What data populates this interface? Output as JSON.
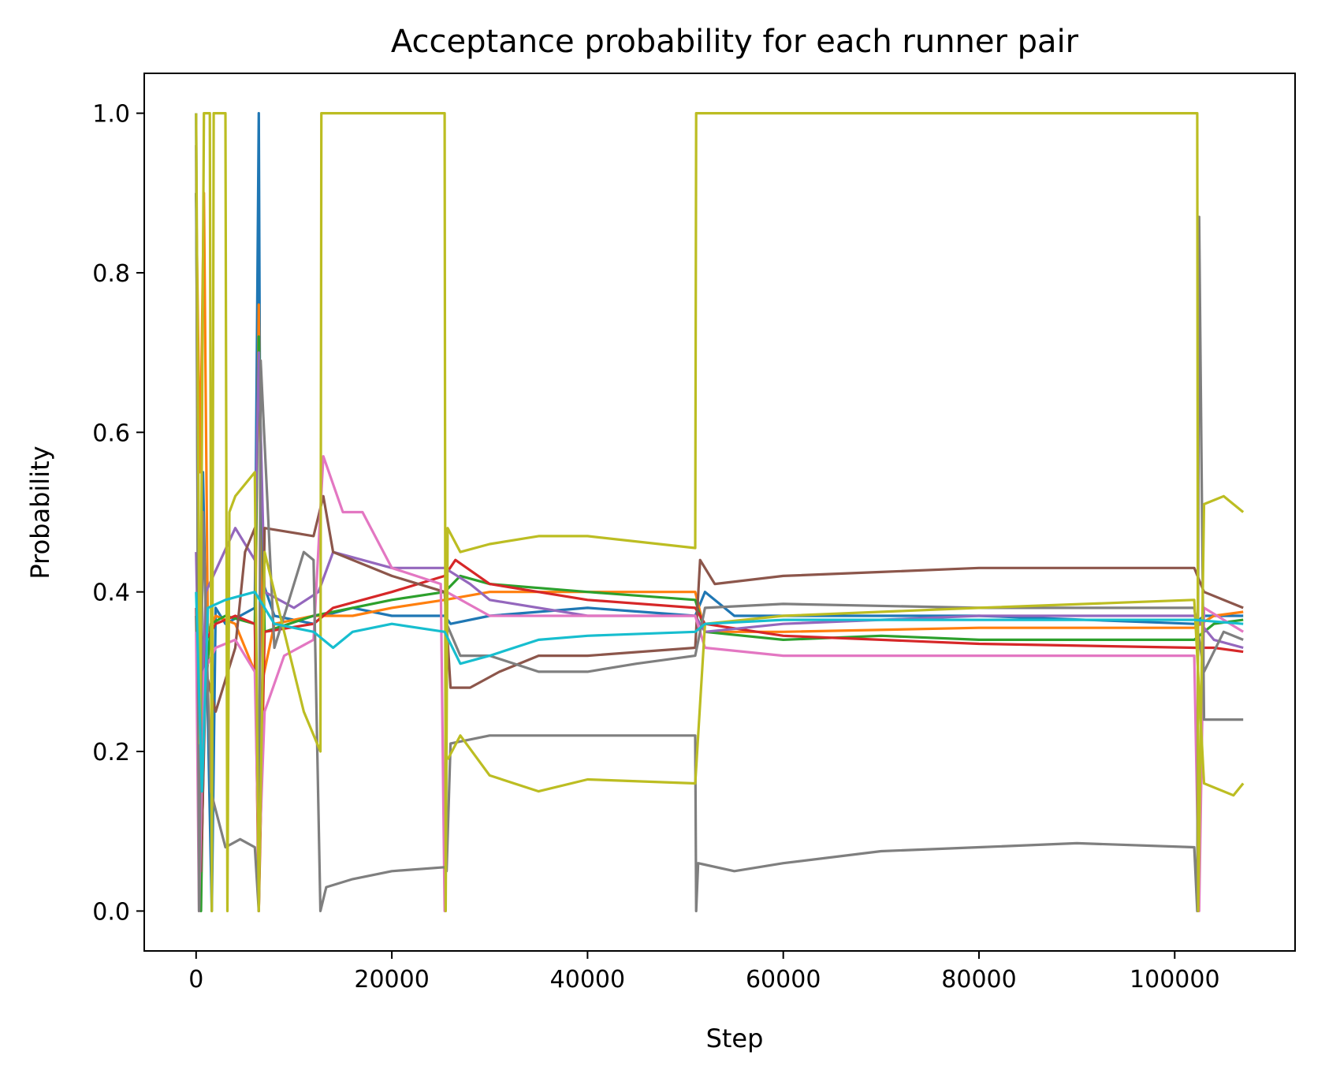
{
  "chart_data": {
    "type": "line",
    "title": "Acceptance probability for each runner pair",
    "xlabel": "Step",
    "ylabel": "Probability",
    "xlim": [
      -5300,
      112300
    ],
    "ylim": [
      -0.05,
      1.05
    ],
    "xticks": [
      0,
      20000,
      40000,
      60000,
      80000,
      100000
    ],
    "yticks": [
      0.0,
      0.2,
      0.4,
      0.6,
      0.8,
      1.0
    ],
    "xtick_labels": [
      "0",
      "20000",
      "40000",
      "60000",
      "80000",
      "100000"
    ],
    "ytick_labels": [
      "0.0",
      "0.2",
      "0.4",
      "0.6",
      "0.8",
      "1.0"
    ],
    "grid": false,
    "legend": "none",
    "series": [
      {
        "color": "#1f77b4",
        "points": [
          [
            0,
            1.0
          ],
          [
            300,
            0.05
          ],
          [
            700,
            0.55
          ],
          [
            1100,
            0.3
          ],
          [
            1600,
            0.0
          ],
          [
            2000,
            0.38
          ],
          [
            3000,
            0.36
          ],
          [
            4500,
            0.37
          ],
          [
            6000,
            0.38
          ],
          [
            6400,
            1.0
          ],
          [
            6600,
            0.42
          ],
          [
            8000,
            0.37
          ],
          [
            12000,
            0.36
          ],
          [
            13000,
            0.37
          ],
          [
            16000,
            0.38
          ],
          [
            20000,
            0.37
          ],
          [
            25400,
            0.37
          ],
          [
            26000,
            0.36
          ],
          [
            30000,
            0.37
          ],
          [
            40000,
            0.38
          ],
          [
            51000,
            0.37
          ],
          [
            52000,
            0.4
          ],
          [
            55000,
            0.37
          ],
          [
            60000,
            0.37
          ],
          [
            80000,
            0.37
          ],
          [
            102000,
            0.36
          ],
          [
            103000,
            0.37
          ],
          [
            107000,
            0.37
          ]
        ]
      },
      {
        "color": "#ff7f0e",
        "points": [
          [
            0,
            0.9
          ],
          [
            400,
            0.55
          ],
          [
            800,
            0.9
          ],
          [
            1200,
            0.35
          ],
          [
            2000,
            0.37
          ],
          [
            4000,
            0.36
          ],
          [
            6000,
            0.3
          ],
          [
            6400,
            0.76
          ],
          [
            6800,
            0.29
          ],
          [
            8000,
            0.36
          ],
          [
            12000,
            0.37
          ],
          [
            16000,
            0.37
          ],
          [
            20000,
            0.38
          ],
          [
            25400,
            0.39
          ],
          [
            30000,
            0.4
          ],
          [
            40000,
            0.4
          ],
          [
            51000,
            0.4
          ],
          [
            52000,
            0.35
          ],
          [
            60000,
            0.35
          ],
          [
            80000,
            0.355
          ],
          [
            102000,
            0.355
          ],
          [
            104000,
            0.37
          ],
          [
            107000,
            0.375
          ]
        ]
      },
      {
        "color": "#2ca02c",
        "points": [
          [
            0,
            0.9
          ],
          [
            500,
            0.0
          ],
          [
            800,
            0.25
          ],
          [
            1500,
            0.36
          ],
          [
            3000,
            0.37
          ],
          [
            6000,
            0.36
          ],
          [
            6400,
            0.72
          ],
          [
            7000,
            0.35
          ],
          [
            12000,
            0.37
          ],
          [
            16000,
            0.38
          ],
          [
            20000,
            0.39
          ],
          [
            25400,
            0.4
          ],
          [
            27000,
            0.42
          ],
          [
            30000,
            0.41
          ],
          [
            40000,
            0.4
          ],
          [
            51000,
            0.39
          ],
          [
            52000,
            0.35
          ],
          [
            60000,
            0.34
          ],
          [
            70000,
            0.345
          ],
          [
            80000,
            0.34
          ],
          [
            102000,
            0.34
          ],
          [
            104000,
            0.36
          ],
          [
            107000,
            0.365
          ]
        ]
      },
      {
        "color": "#d62728",
        "points": [
          [
            0,
            0.38
          ],
          [
            600,
            0.09
          ],
          [
            1000,
            0.34
          ],
          [
            2000,
            0.36
          ],
          [
            4000,
            0.37
          ],
          [
            6000,
            0.36
          ],
          [
            6400,
            0.0
          ],
          [
            7000,
            0.35
          ],
          [
            12000,
            0.36
          ],
          [
            14000,
            0.38
          ],
          [
            20000,
            0.4
          ],
          [
            25400,
            0.42
          ],
          [
            26500,
            0.44
          ],
          [
            30000,
            0.41
          ],
          [
            40000,
            0.39
          ],
          [
            51000,
            0.38
          ],
          [
            52000,
            0.36
          ],
          [
            60000,
            0.345
          ],
          [
            70000,
            0.34
          ],
          [
            80000,
            0.335
          ],
          [
            102000,
            0.33
          ],
          [
            104000,
            0.33
          ],
          [
            107000,
            0.325
          ]
        ]
      },
      {
        "color": "#9467bd",
        "points": [
          [
            0,
            0.45
          ],
          [
            400,
            0.2
          ],
          [
            1000,
            0.4
          ],
          [
            2500,
            0.44
          ],
          [
            4000,
            0.48
          ],
          [
            6000,
            0.44
          ],
          [
            6400,
            0.7
          ],
          [
            7000,
            0.4
          ],
          [
            10000,
            0.38
          ],
          [
            12500,
            0.4
          ],
          [
            14000,
            0.45
          ],
          [
            20000,
            0.43
          ],
          [
            25400,
            0.43
          ],
          [
            28000,
            0.41
          ],
          [
            30000,
            0.39
          ],
          [
            40000,
            0.37
          ],
          [
            51000,
            0.37
          ],
          [
            52000,
            0.35
          ],
          [
            60000,
            0.36
          ],
          [
            80000,
            0.37
          ],
          [
            102000,
            0.37
          ],
          [
            104000,
            0.34
          ],
          [
            107000,
            0.33
          ]
        ]
      },
      {
        "color": "#8c564b",
        "points": [
          [
            0,
            0.37
          ],
          [
            500,
            0.05
          ],
          [
            1000,
            0.3
          ],
          [
            2000,
            0.25
          ],
          [
            4000,
            0.33
          ],
          [
            5000,
            0.45
          ],
          [
            6000,
            0.48
          ],
          [
            6400,
            0.0
          ],
          [
            7000,
            0.48
          ],
          [
            12000,
            0.47
          ],
          [
            13000,
            0.52
          ],
          [
            14000,
            0.45
          ],
          [
            20000,
            0.42
          ],
          [
            25400,
            0.4
          ],
          [
            26000,
            0.28
          ],
          [
            28000,
            0.28
          ],
          [
            31000,
            0.3
          ],
          [
            35000,
            0.32
          ],
          [
            40000,
            0.32
          ],
          [
            51000,
            0.33
          ],
          [
            51500,
            0.44
          ],
          [
            53000,
            0.41
          ],
          [
            60000,
            0.42
          ],
          [
            70000,
            0.425
          ],
          [
            80000,
            0.43
          ],
          [
            102000,
            0.43
          ],
          [
            103000,
            0.4
          ],
          [
            107000,
            0.38
          ]
        ]
      },
      {
        "color": "#e377c2",
        "points": [
          [
            0,
            0.35
          ],
          [
            300,
            0.0
          ],
          [
            800,
            0.3
          ],
          [
            2000,
            0.33
          ],
          [
            4000,
            0.34
          ],
          [
            6000,
            0.3
          ],
          [
            6400,
            0.05
          ],
          [
            7000,
            0.25
          ],
          [
            9000,
            0.32
          ],
          [
            12000,
            0.34
          ],
          [
            13000,
            0.57
          ],
          [
            15000,
            0.5
          ],
          [
            17000,
            0.5
          ],
          [
            20000,
            0.43
          ],
          [
            25000,
            0.41
          ],
          [
            25400,
            0.0
          ],
          [
            25600,
            0.4
          ],
          [
            30000,
            0.37
          ],
          [
            40000,
            0.37
          ],
          [
            51000,
            0.37
          ],
          [
            52000,
            0.33
          ],
          [
            60000,
            0.32
          ],
          [
            80000,
            0.32
          ],
          [
            102000,
            0.32
          ],
          [
            102500,
            0.0
          ],
          [
            103000,
            0.38
          ],
          [
            107000,
            0.35
          ]
        ]
      },
      {
        "color": "#7f7f7f",
        "points": [
          [
            0,
            0.96
          ],
          [
            300,
            0.0
          ],
          [
            700,
            0.5
          ],
          [
            1500,
            0.15
          ],
          [
            3000,
            0.08
          ],
          [
            4500,
            0.09
          ],
          [
            6000,
            0.08
          ],
          [
            6400,
            0.0
          ],
          [
            6600,
            0.69
          ],
          [
            8000,
            0.33
          ],
          [
            11000,
            0.45
          ],
          [
            12000,
            0.44
          ],
          [
            12700,
            0.0
          ],
          [
            13300,
            0.03
          ],
          [
            16000,
            0.04
          ],
          [
            20000,
            0.05
          ],
          [
            25400,
            0.055
          ],
          [
            25600,
            0.05
          ],
          [
            26000,
            0.21
          ],
          [
            30000,
            0.22
          ],
          [
            40000,
            0.22
          ],
          [
            51000,
            0.22
          ],
          [
            51100,
            0.0
          ],
          [
            51300,
            0.06
          ],
          [
            55000,
            0.05
          ],
          [
            60000,
            0.06
          ],
          [
            70000,
            0.075
          ],
          [
            80000,
            0.08
          ],
          [
            90000,
            0.085
          ],
          [
            102000,
            0.08
          ],
          [
            102300,
            0.0
          ],
          [
            102500,
            0.87
          ],
          [
            103000,
            0.24
          ],
          [
            107000,
            0.24
          ]
        ]
      },
      {
        "color": "#7f7f7f",
        "points": [
          [
            25600,
            0.36
          ],
          [
            27000,
            0.32
          ],
          [
            30000,
            0.32
          ],
          [
            35000,
            0.3
          ],
          [
            40000,
            0.3
          ],
          [
            45000,
            0.31
          ],
          [
            51000,
            0.32
          ],
          [
            52000,
            0.38
          ],
          [
            60000,
            0.385
          ],
          [
            80000,
            0.38
          ],
          [
            102000,
            0.38
          ],
          [
            103000,
            0.3
          ],
          [
            105000,
            0.35
          ],
          [
            107000,
            0.34
          ]
        ]
      },
      {
        "color": "#bcbd22",
        "points": [
          [
            0,
            1.0
          ],
          [
            400,
            0.21
          ],
          [
            800,
            1.0
          ],
          [
            1400,
            1.0
          ],
          [
            1600,
            0.0
          ],
          [
            1800,
            1.0
          ],
          [
            3000,
            1.0
          ],
          [
            3200,
            0.0
          ],
          [
            3400,
            0.5
          ],
          [
            4000,
            0.52
          ],
          [
            6000,
            0.55
          ],
          [
            6400,
            0.0
          ],
          [
            7000,
            0.45
          ],
          [
            9000,
            0.35
          ],
          [
            11000,
            0.25
          ],
          [
            12700,
            0.2
          ],
          [
            12800,
            1.0
          ],
          [
            25400,
            1.0
          ],
          [
            25500,
            0.0
          ],
          [
            25700,
            0.48
          ],
          [
            27000,
            0.45
          ],
          [
            30000,
            0.46
          ],
          [
            35000,
            0.47
          ],
          [
            40000,
            0.47
          ],
          [
            51000,
            0.455
          ],
          [
            51100,
            1.0
          ],
          [
            102300,
            1.0
          ],
          [
            102400,
            0.0
          ],
          [
            103000,
            0.51
          ],
          [
            105000,
            0.52
          ],
          [
            107000,
            0.5
          ]
        ]
      },
      {
        "color": "#bcbd22",
        "points": [
          [
            25700,
            0.19
          ],
          [
            27000,
            0.22
          ],
          [
            30000,
            0.17
          ],
          [
            35000,
            0.15
          ],
          [
            40000,
            0.165
          ],
          [
            51000,
            0.16
          ],
          [
            52000,
            0.36
          ],
          [
            60000,
            0.37
          ],
          [
            80000,
            0.38
          ],
          [
            102000,
            0.39
          ],
          [
            103000,
            0.16
          ],
          [
            106000,
            0.145
          ],
          [
            107000,
            0.16
          ]
        ]
      },
      {
        "color": "#17becf",
        "points": [
          [
            0,
            0.4
          ],
          [
            600,
            0.15
          ],
          [
            1200,
            0.38
          ],
          [
            3000,
            0.39
          ],
          [
            6000,
            0.4
          ],
          [
            8000,
            0.36
          ],
          [
            12000,
            0.35
          ],
          [
            14000,
            0.33
          ],
          [
            16000,
            0.35
          ],
          [
            20000,
            0.36
          ],
          [
            25400,
            0.35
          ],
          [
            27000,
            0.31
          ],
          [
            30000,
            0.32
          ],
          [
            35000,
            0.34
          ],
          [
            40000,
            0.345
          ],
          [
            51000,
            0.35
          ],
          [
            52000,
            0.36
          ],
          [
            60000,
            0.365
          ],
          [
            80000,
            0.365
          ],
          [
            102000,
            0.365
          ],
          [
            107000,
            0.36
          ]
        ]
      }
    ]
  }
}
